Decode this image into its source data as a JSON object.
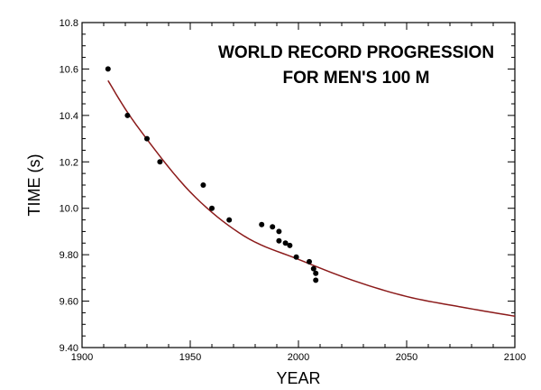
{
  "chart_data": {
    "type": "scatter",
    "title": [
      "WORLD RECORD PROGRESSION",
      "FOR MEN'S 100 M"
    ],
    "xlabel": "YEAR",
    "ylabel": "TIME (s)",
    "xlim": [
      1900,
      2100
    ],
    "ylim": [
      9.4,
      10.8
    ],
    "xticks": [
      1900,
      1950,
      2000,
      2050,
      2100
    ],
    "xtick_labels": [
      "1900",
      "1950",
      "2000",
      "2050",
      "2100"
    ],
    "yticks": [
      9.4,
      9.6,
      9.8,
      10.0,
      10.2,
      10.4,
      10.6,
      10.8
    ],
    "ytick_labels": [
      "9.40",
      "9.60",
      "9.80",
      "10.0",
      "10.2",
      "10.4",
      "10.6",
      "10.8"
    ],
    "grid": false,
    "points": [
      [
        1912,
        10.6
      ],
      [
        1921,
        10.4
      ],
      [
        1930,
        10.3
      ],
      [
        1936,
        10.2
      ],
      [
        1956,
        10.1
      ],
      [
        1960,
        10.0
      ],
      [
        1968,
        9.95
      ],
      [
        1983,
        9.93
      ],
      [
        1988,
        9.92
      ],
      [
        1991,
        9.9
      ],
      [
        1991,
        9.86
      ],
      [
        1994,
        9.85
      ],
      [
        1996,
        9.84
      ],
      [
        1999,
        9.79
      ],
      [
        2005,
        9.77
      ],
      [
        2007,
        9.74
      ],
      [
        2008,
        9.72
      ],
      [
        2008,
        9.69
      ]
    ],
    "fit_curve": [
      [
        1912,
        10.55
      ],
      [
        1925,
        10.36
      ],
      [
        1950,
        10.07
      ],
      [
        1975,
        9.88
      ],
      [
        2000,
        9.78
      ],
      [
        2025,
        9.69
      ],
      [
        2050,
        9.62
      ],
      [
        2075,
        9.575
      ],
      [
        2100,
        9.535
      ]
    ],
    "colors": {
      "points": "#000000",
      "curve": "#8b1a1a"
    }
  }
}
